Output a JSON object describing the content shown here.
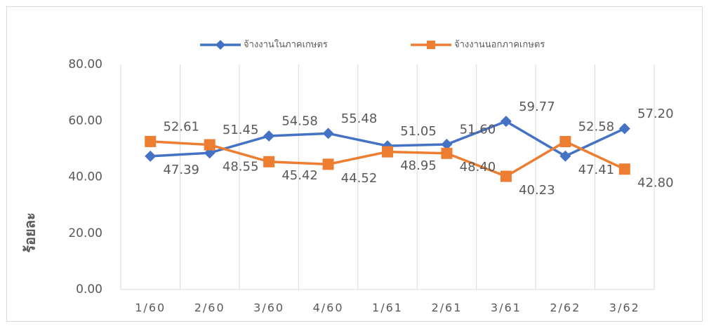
{
  "chart_data": {
    "type": "line",
    "y_label": "ร้อยละ",
    "categories": [
      "1/60",
      "2/60",
      "3/60",
      "4/60",
      "1/61",
      "2/61",
      "3/61",
      "2/62",
      "3/62"
    ],
    "series": [
      {
        "name": "จ้างงานในภาคเกษตร",
        "color": "#4472c4",
        "marker": "diamond",
        "values": [
          47.39,
          48.55,
          54.58,
          55.48,
          51.05,
          51.6,
          59.77,
          47.41,
          57.2
        ],
        "value_labels": [
          "47.39",
          "48.55",
          "54.58",
          "55.48",
          "51.05",
          "51.60",
          "59.77",
          "47.41",
          "57.20"
        ]
      },
      {
        "name": "จ้างงานนอกภาคเกษตร",
        "color": "#ed7d31",
        "marker": "square",
        "values": [
          52.61,
          51.45,
          45.42,
          44.52,
          48.95,
          48.4,
          40.23,
          52.58,
          42.8
        ],
        "value_labels": [
          "52.61",
          "51.45",
          "45.42",
          "44.52",
          "48.95",
          "48.40",
          "40.23",
          "52.58",
          "42.80"
        ]
      }
    ],
    "ylim": [
      0,
      80
    ],
    "yticks": [
      {
        "value": 0,
        "label": "0.00"
      },
      {
        "value": 20,
        "label": "20.00"
      },
      {
        "value": 40,
        "label": "40.00"
      },
      {
        "value": 60,
        "label": "60.00"
      },
      {
        "value": 80,
        "label": "80.00"
      }
    ],
    "grid": true,
    "legend": "top"
  }
}
